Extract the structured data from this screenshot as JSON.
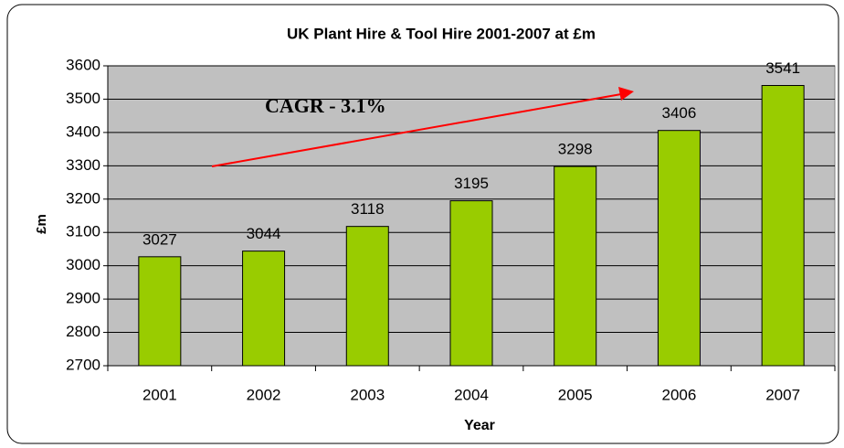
{
  "chart_data": {
    "type": "bar",
    "title": "UK Plant Hire & Tool Hire 2001-2007 at £m",
    "categories": [
      "2001",
      "2002",
      "2003",
      "2004",
      "2005",
      "2006",
      "2007"
    ],
    "values": [
      3027,
      3044,
      3118,
      3195,
      3298,
      3406,
      3541
    ],
    "color": "#99cc00",
    "ylim": [
      2700,
      3600
    ],
    "yticks": [
      2700,
      2800,
      2900,
      3000,
      3100,
      3200,
      3300,
      3400,
      3500,
      3600
    ],
    "grid": true,
    "x_label": "Year",
    "y_label": "£m",
    "annotation": "CAGR  - 3.1%"
  }
}
